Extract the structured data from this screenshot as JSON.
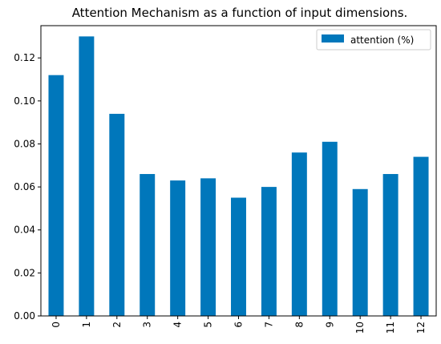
{
  "chart_data": {
    "type": "bar",
    "title": "Attention Mechanism as a function of input dimensions.",
    "xlabel": "",
    "ylabel": "",
    "categories": [
      "0",
      "1",
      "2",
      "3",
      "4",
      "5",
      "6",
      "7",
      "8",
      "9",
      "10",
      "11",
      "12"
    ],
    "series": [
      {
        "name": "attention (%)",
        "color": "#0077bb",
        "values": [
          0.112,
          0.13,
          0.094,
          0.066,
          0.063,
          0.064,
          0.055,
          0.06,
          0.076,
          0.081,
          0.059,
          0.066,
          0.074
        ]
      }
    ],
    "ylim": [
      0,
      0.135
    ],
    "yticks": [
      "0.00",
      "0.02",
      "0.04",
      "0.06",
      "0.08",
      "0.10",
      "0.12"
    ],
    "x_tick_rotation": "vertical",
    "legend_position": "top-right",
    "grid": false
  }
}
